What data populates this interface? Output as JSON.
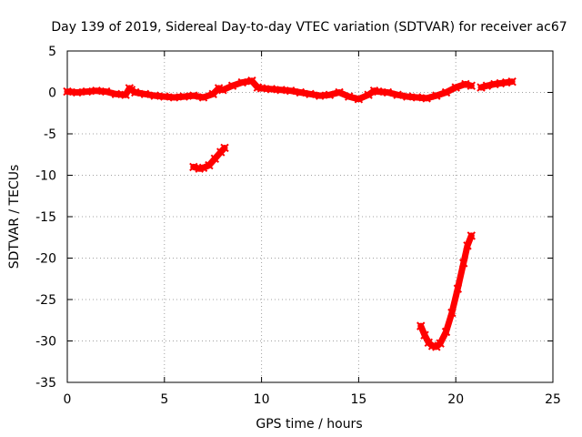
{
  "chart_data": {
    "type": "scatter",
    "title": "Day 139 of 2019, Sidereal Day-to-day VTEC variation (SDTVAR) for receiver ac67",
    "xlabel": "GPS time / hours",
    "ylabel": "SDTVAR / TECUs",
    "xlim": [
      0,
      25
    ],
    "ylim": [
      -35,
      5
    ],
    "xticks": [
      "0",
      "5",
      "10",
      "15",
      "20",
      "25"
    ],
    "yticks": [
      "5",
      "0",
      "-5",
      "-10",
      "-15",
      "-20",
      "-25",
      "-30",
      "-35"
    ],
    "xtick_values": [
      0,
      5,
      10,
      15,
      20,
      25
    ],
    "ytick_values": [
      5,
      0,
      -5,
      -10,
      -15,
      -20,
      -25,
      -30,
      -35
    ],
    "grid": true,
    "series_color": "#ff0000",
    "series": [
      {
        "name": "main trace",
        "x": [
          0.0,
          0.5,
          1.0,
          1.5,
          2.0,
          2.5,
          3.0,
          3.2,
          3.3,
          3.5,
          4.0,
          4.5,
          5.0,
          5.5,
          6.0,
          6.5,
          7.0,
          7.5,
          7.8,
          8.0,
          8.5,
          9.0,
          9.5,
          9.8,
          10.0,
          10.5,
          11.0,
          11.5,
          12.0,
          12.5,
          13.0,
          13.5,
          14.0,
          14.5,
          15.0,
          15.5,
          15.8,
          16.0,
          16.5,
          17.0,
          17.5,
          18.0,
          18.5,
          19.0,
          19.5,
          20.0,
          20.5,
          20.8
        ],
        "y": [
          0.1,
          0.0,
          0.1,
          0.2,
          0.1,
          -0.2,
          -0.3,
          0.5,
          0.3,
          0.0,
          -0.2,
          -0.4,
          -0.5,
          -0.6,
          -0.5,
          -0.4,
          -0.6,
          -0.2,
          0.5,
          0.3,
          0.8,
          1.2,
          1.4,
          0.6,
          0.5,
          0.4,
          0.3,
          0.2,
          0.0,
          -0.2,
          -0.4,
          -0.3,
          0.0,
          -0.5,
          -0.8,
          -0.3,
          0.2,
          0.1,
          0.0,
          -0.3,
          -0.5,
          -0.6,
          -0.7,
          -0.4,
          0.0,
          0.6,
          1.0,
          0.8
        ]
      },
      {
        "name": "late segment",
        "x": [
          21.3,
          21.6,
          22.0,
          22.3,
          22.6,
          22.9
        ],
        "y": [
          0.6,
          0.8,
          1.0,
          1.1,
          1.2,
          1.3
        ]
      },
      {
        "name": "dip segment 1",
        "x": [
          6.5,
          6.8,
          7.0,
          7.3,
          7.6,
          7.9,
          8.1
        ],
        "y": [
          -9.0,
          -9.2,
          -9.1,
          -8.8,
          -8.0,
          -7.2,
          -6.7
        ]
      },
      {
        "name": "dip segment 2",
        "x": [
          18.2,
          18.4,
          18.6,
          18.8,
          19.0,
          19.2,
          19.5,
          19.8,
          20.1,
          20.4,
          20.6,
          20.8
        ],
        "y": [
          -28.2,
          -29.3,
          -30.2,
          -30.6,
          -30.7,
          -30.3,
          -28.9,
          -26.6,
          -23.7,
          -20.6,
          -18.5,
          -17.3
        ]
      }
    ]
  }
}
